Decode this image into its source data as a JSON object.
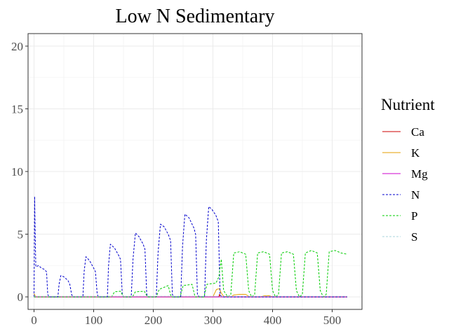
{
  "chart_data": {
    "type": "line",
    "title": "Low N Sedimentary",
    "xlabel": "",
    "ylabel": "",
    "xlim": [
      -10,
      550
    ],
    "ylim": [
      -1,
      21
    ],
    "x_ticks": [
      0,
      100,
      200,
      300,
      400,
      500
    ],
    "y_ticks": [
      0,
      5,
      10,
      15,
      20
    ],
    "grid": true,
    "legend": {
      "title": "Nutrient",
      "position": "right"
    },
    "series": [
      {
        "name": "Ca",
        "color": "#cc0000",
        "dash": "solid",
        "points": [
          [
            0,
            0
          ],
          [
            310,
            0
          ],
          [
            311,
            0.2
          ],
          [
            313,
            0
          ],
          [
            525,
            0
          ]
        ]
      },
      {
        "name": "K",
        "color": "#e69f00",
        "dash": "solid",
        "points": [
          [
            0,
            0.25
          ],
          [
            2,
            0.1
          ],
          [
            4,
            0
          ],
          [
            300,
            0
          ],
          [
            303,
            0.3
          ],
          [
            306,
            0.6
          ],
          [
            311,
            0.65
          ],
          [
            314,
            0.3
          ],
          [
            318,
            0.05
          ],
          [
            330,
            0
          ],
          [
            335,
            0.15
          ],
          [
            345,
            0.2
          ],
          [
            355,
            0.2
          ],
          [
            360,
            0.05
          ],
          [
            365,
            0
          ],
          [
            380,
            0
          ],
          [
            385,
            0.08
          ],
          [
            395,
            0.1
          ],
          [
            400,
            0
          ],
          [
            525,
            0
          ]
        ]
      },
      {
        "name": "Mg",
        "color": "#cc00cc",
        "dash": "solid",
        "points": [
          [
            0,
            0
          ],
          [
            525,
            0
          ]
        ]
      },
      {
        "name": "N",
        "color": "#0000cc",
        "dash": "dashed",
        "points": [
          [
            0,
            0
          ],
          [
            1,
            8
          ],
          [
            2,
            5
          ],
          [
            3,
            2.4
          ],
          [
            8,
            2.5
          ],
          [
            12,
            2.3
          ],
          [
            17,
            2.2
          ],
          [
            21,
            2.0
          ],
          [
            23,
            0.2
          ],
          [
            25,
            0
          ],
          [
            40,
            0
          ],
          [
            42,
            1.0
          ],
          [
            45,
            1.7
          ],
          [
            50,
            1.6
          ],
          [
            57,
            1.3
          ],
          [
            60,
            1.0
          ],
          [
            63,
            0.2
          ],
          [
            65,
            0
          ],
          [
            82,
            0
          ],
          [
            84,
            2.0
          ],
          [
            87,
            3.2
          ],
          [
            93,
            2.9
          ],
          [
            100,
            2.3
          ],
          [
            103,
            2.0
          ],
          [
            106,
            0.2
          ],
          [
            108,
            0
          ],
          [
            123,
            0
          ],
          [
            125,
            2.5
          ],
          [
            128,
            4.2
          ],
          [
            135,
            3.9
          ],
          [
            142,
            3.3
          ],
          [
            145,
            3.0
          ],
          [
            148,
            0.2
          ],
          [
            150,
            0
          ],
          [
            163,
            0
          ],
          [
            166,
            3.0
          ],
          [
            170,
            5.1
          ],
          [
            176,
            4.8
          ],
          [
            183,
            4.2
          ],
          [
            186,
            3.8
          ],
          [
            189,
            0.2
          ],
          [
            192,
            0
          ],
          [
            205,
            0
          ],
          [
            208,
            3.5
          ],
          [
            212,
            5.8
          ],
          [
            218,
            5.6
          ],
          [
            225,
            5.0
          ],
          [
            229,
            4.5
          ],
          [
            232,
            0.2
          ],
          [
            234,
            0
          ],
          [
            246,
            0
          ],
          [
            249,
            4.0
          ],
          [
            253,
            6.6
          ],
          [
            260,
            6.3
          ],
          [
            268,
            5.5
          ],
          [
            271,
            5.0
          ],
          [
            274,
            0.2
          ],
          [
            277,
            0
          ],
          [
            286,
            0
          ],
          [
            289,
            4.5
          ],
          [
            293,
            7.2
          ],
          [
            298,
            7.0
          ],
          [
            305,
            6.5
          ],
          [
            309,
            6.0
          ],
          [
            312,
            0.2
          ],
          [
            315,
            0
          ],
          [
            525,
            0
          ]
        ]
      },
      {
        "name": "P",
        "color": "#00cc00",
        "dash": "dashed",
        "points": [
          [
            0,
            0
          ],
          [
            130,
            0
          ],
          [
            135,
            0.4
          ],
          [
            145,
            0.45
          ],
          [
            150,
            0
          ],
          [
            165,
            0
          ],
          [
            170,
            0.4
          ],
          [
            185,
            0.45
          ],
          [
            190,
            0
          ],
          [
            205,
            0
          ],
          [
            210,
            0.6
          ],
          [
            225,
            0.9
          ],
          [
            230,
            0
          ],
          [
            245,
            0
          ],
          [
            250,
            0.9
          ],
          [
            265,
            1.0
          ],
          [
            270,
            0
          ],
          [
            285,
            0
          ],
          [
            290,
            1.0
          ],
          [
            305,
            1.1
          ],
          [
            310,
            1.6
          ],
          [
            314,
            3.0
          ],
          [
            318,
            0.5
          ],
          [
            325,
            0
          ],
          [
            330,
            0.2
          ],
          [
            335,
            3.5
          ],
          [
            345,
            3.6
          ],
          [
            355,
            3.4
          ],
          [
            360,
            0.5
          ],
          [
            365,
            0
          ],
          [
            370,
            0.2
          ],
          [
            375,
            3.5
          ],
          [
            385,
            3.6
          ],
          [
            395,
            3.4
          ],
          [
            400,
            0.5
          ],
          [
            405,
            0
          ],
          [
            410,
            0.2
          ],
          [
            415,
            3.5
          ],
          [
            425,
            3.6
          ],
          [
            435,
            3.4
          ],
          [
            440,
            0.5
          ],
          [
            445,
            0
          ],
          [
            450,
            0.2
          ],
          [
            455,
            3.5
          ],
          [
            465,
            3.7
          ],
          [
            475,
            3.5
          ],
          [
            480,
            0.5
          ],
          [
            485,
            0
          ],
          [
            490,
            0.2
          ],
          [
            495,
            3.6
          ],
          [
            505,
            3.7
          ],
          [
            515,
            3.5
          ],
          [
            525,
            3.4
          ]
        ]
      },
      {
        "name": "S",
        "color": "#aad4dd",
        "dash": "dashed",
        "points": [
          [
            0,
            0.05
          ],
          [
            525,
            0.05
          ]
        ]
      }
    ]
  }
}
